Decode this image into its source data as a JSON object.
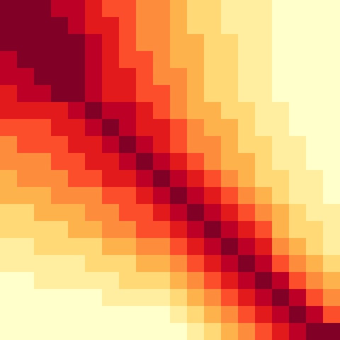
{
  "chart_data": {
    "type": "heatmap",
    "rows": 20,
    "cols": 20,
    "colormap": [
      "#FFFFCC",
      "#FFEDA0",
      "#FED976",
      "#FEB24C",
      "#FD8D3C",
      "#FC4E2A",
      "#E31A1C",
      "#BD0026",
      "#800026"
    ],
    "value_range": [
      0,
      8
    ],
    "values": [
      [
        8,
        8,
        8,
        7,
        7,
        6,
        5,
        5,
        4,
        4,
        3,
        2,
        2,
        1,
        1,
        1,
        0,
        0,
        0,
        0
      ],
      [
        8,
        8,
        8,
        8,
        7,
        6,
        6,
        5,
        4,
        4,
        3,
        2,
        2,
        1,
        1,
        1,
        0,
        0,
        0,
        0
      ],
      [
        8,
        8,
        8,
        8,
        8,
        7,
        6,
        5,
        4,
        4,
        3,
        3,
        2,
        2,
        1,
        1,
        0,
        0,
        0,
        0
      ],
      [
        7,
        8,
        8,
        8,
        8,
        7,
        6,
        5,
        5,
        4,
        3,
        3,
        2,
        2,
        1,
        1,
        0,
        0,
        0,
        0
      ],
      [
        7,
        7,
        8,
        8,
        8,
        7,
        6,
        6,
        5,
        4,
        4,
        3,
        2,
        2,
        1,
        1,
        0,
        0,
        0,
        0
      ],
      [
        6,
        7,
        7,
        8,
        8,
        7,
        6,
        6,
        5,
        5,
        4,
        3,
        2,
        2,
        1,
        1,
        0,
        0,
        0,
        0
      ],
      [
        6,
        6,
        6,
        6,
        7,
        8,
        7,
        7,
        6,
        5,
        4,
        3,
        3,
        2,
        2,
        1,
        1,
        0,
        0,
        0
      ],
      [
        5,
        5,
        5,
        6,
        6,
        7,
        8,
        7,
        6,
        6,
        5,
        4,
        3,
        3,
        2,
        1,
        1,
        0,
        0,
        0
      ],
      [
        4,
        5,
        5,
        5,
        6,
        6,
        7,
        8,
        7,
        6,
        5,
        4,
        4,
        3,
        2,
        2,
        1,
        1,
        0,
        0
      ],
      [
        4,
        4,
        4,
        5,
        5,
        6,
        6,
        7,
        8,
        7,
        6,
        5,
        4,
        3,
        3,
        2,
        1,
        1,
        0,
        0
      ],
      [
        3,
        4,
        4,
        4,
        5,
        5,
        6,
        6,
        7,
        8,
        7,
        6,
        5,
        4,
        3,
        2,
        2,
        1,
        1,
        0
      ],
      [
        3,
        3,
        3,
        4,
        4,
        4,
        5,
        5,
        6,
        7,
        8,
        7,
        6,
        5,
        4,
        3,
        2,
        1,
        1,
        0
      ],
      [
        2,
        2,
        3,
        3,
        3,
        4,
        4,
        5,
        5,
        6,
        7,
        8,
        7,
        6,
        5,
        4,
        3,
        2,
        1,
        1
      ],
      [
        2,
        2,
        2,
        2,
        3,
        3,
        4,
        4,
        5,
        5,
        6,
        7,
        8,
        7,
        6,
        5,
        3,
        2,
        2,
        1
      ],
      [
        1,
        1,
        2,
        2,
        2,
        2,
        3,
        3,
        4,
        4,
        5,
        6,
        7,
        8,
        7,
        6,
        4,
        3,
        2,
        1
      ],
      [
        1,
        1,
        1,
        1,
        1,
        2,
        2,
        2,
        3,
        3,
        4,
        5,
        6,
        7,
        8,
        7,
        5,
        4,
        3,
        2
      ],
      [
        0,
        0,
        1,
        1,
        1,
        1,
        1,
        2,
        2,
        2,
        3,
        4,
        5,
        6,
        7,
        8,
        7,
        5,
        4,
        3
      ],
      [
        0,
        0,
        0,
        0,
        0,
        0,
        1,
        1,
        1,
        1,
        2,
        3,
        4,
        5,
        6,
        7,
        8,
        7,
        5,
        4
      ],
      [
        0,
        0,
        0,
        0,
        0,
        0,
        0,
        0,
        0,
        0,
        1,
        2,
        3,
        4,
        5,
        6,
        7,
        8,
        7,
        5
      ],
      [
        0,
        0,
        0,
        0,
        0,
        0,
        0,
        0,
        0,
        0,
        0,
        1,
        2,
        3,
        4,
        5,
        6,
        7,
        8,
        8
      ]
    ]
  }
}
